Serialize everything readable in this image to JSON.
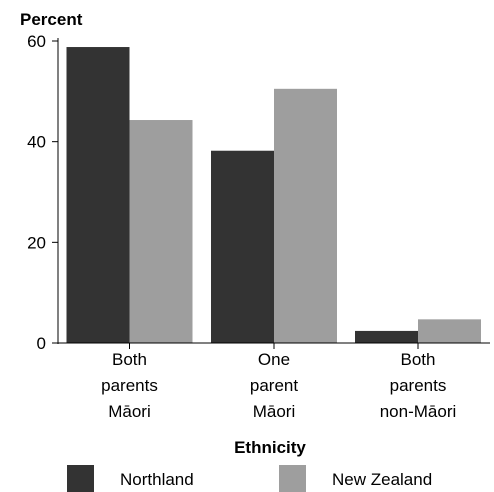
{
  "chart_data": {
    "type": "bar",
    "title": "",
    "ylabel": "Percent",
    "xlabel": "Ethnicity",
    "ylim": [
      0,
      60
    ],
    "yticks": [
      0,
      20,
      40,
      60
    ],
    "grid": false,
    "legend_position": "bottom",
    "categories": [
      [
        "Both",
        "parents",
        "Māori"
      ],
      [
        "One",
        "parent",
        "Māori"
      ],
      [
        "Both",
        "parents",
        "non-Māori"
      ]
    ],
    "series": [
      {
        "name": "Northland",
        "color": "#333333",
        "values": [
          58.8,
          38.2,
          2.4
        ]
      },
      {
        "name": "New Zealand",
        "color": "#9e9e9e",
        "values": [
          44.3,
          50.5,
          4.7
        ]
      }
    ]
  }
}
